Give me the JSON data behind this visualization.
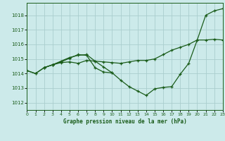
{
  "title": "Graphe pression niveau de la mer (hPa)",
  "background_color": "#cceaea",
  "grid_color": "#aacece",
  "line_color": "#1a5c1a",
  "xlim": [
    0,
    23
  ],
  "ylim": [
    1011.5,
    1018.85
  ],
  "yticks": [
    1012,
    1013,
    1014,
    1015,
    1016,
    1017,
    1018
  ],
  "xticks": [
    0,
    1,
    2,
    3,
    4,
    5,
    6,
    7,
    8,
    9,
    10,
    11,
    12,
    13,
    14,
    15,
    16,
    17,
    18,
    19,
    20,
    21,
    22,
    23
  ],
  "series": [
    {
      "x": [
        0,
        1,
        2,
        3,
        4,
        5,
        6,
        7,
        8,
        9,
        10,
        11,
        12,
        13,
        14,
        15,
        16,
        17,
        18,
        19,
        20,
        21,
        22,
        23
      ],
      "y": [
        1014.2,
        1014.0,
        1014.4,
        1014.6,
        1014.8,
        1015.05,
        1015.3,
        1015.25,
        1014.4,
        1014.1,
        1014.05,
        1013.55,
        1013.1,
        1012.8,
        1012.5,
        1012.95,
        1013.05,
        1013.1,
        1013.95,
        1014.7,
        1016.3,
        1018.0,
        1018.3,
        1018.45
      ]
    },
    {
      "x": [
        0,
        1,
        2,
        3,
        4,
        5,
        6,
        7,
        8,
        9,
        10,
        11,
        12,
        13,
        14,
        15,
        16,
        17,
        18,
        19,
        20,
        21,
        22,
        23
      ],
      "y": [
        1014.2,
        1014.0,
        1014.4,
        1014.6,
        1014.75,
        1014.8,
        1014.7,
        1014.9,
        1014.85,
        1014.8,
        1014.75,
        1014.7,
        1014.8,
        1014.9,
        1014.9,
        1015.0,
        1015.3,
        1015.6,
        1015.8,
        1016.0,
        1016.3,
        1016.3,
        1016.35,
        1016.3
      ]
    },
    {
      "x": [
        2,
        3,
        4,
        5,
        6,
        7,
        8,
        9,
        10
      ],
      "y": [
        1014.4,
        1014.6,
        1014.85,
        1015.1,
        1015.25,
        1015.3,
        1014.85,
        1014.45,
        1014.05
      ]
    }
  ]
}
